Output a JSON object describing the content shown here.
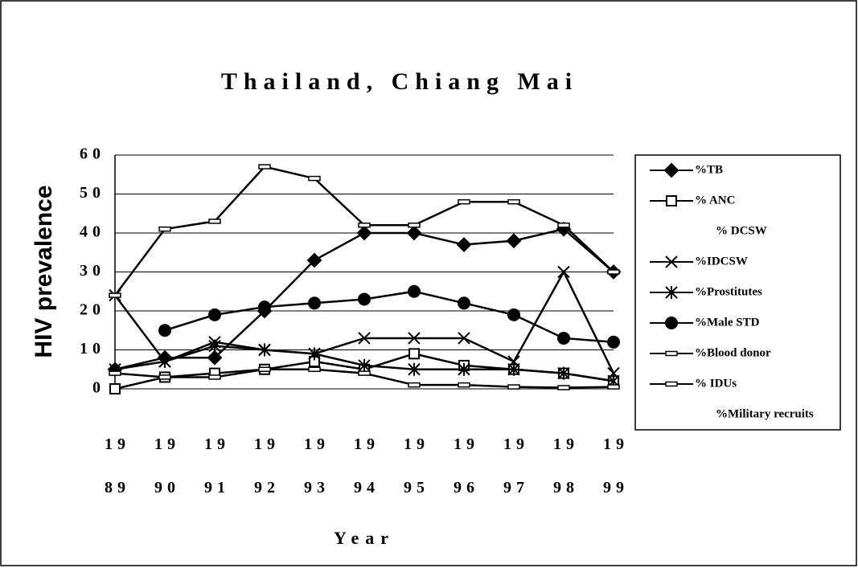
{
  "chart_data": {
    "type": "line",
    "title": "Thailand, Chiang Mai",
    "x_label": "Year",
    "y_label": "HIV prevalence",
    "categories": [
      "1989",
      "1990",
      "1991",
      "1992",
      "1993",
      "1994",
      "1995",
      "1996",
      "1997",
      "1998",
      "1999"
    ],
    "ylim": [
      0,
      60
    ],
    "yticks": [
      0,
      10,
      20,
      30,
      40,
      50,
      60
    ],
    "grid": true,
    "legend": "right",
    "series": [
      {
        "name": "%TB",
        "color": "#000000",
        "marker": "diamond",
        "values": [
          5,
          8,
          8,
          20,
          33,
          40,
          40,
          37,
          38,
          41,
          30
        ]
      },
      {
        "name": "% ANC",
        "color": "#000000",
        "marker": "square",
        "values": [
          0,
          3,
          4,
          5,
          7,
          5,
          9,
          6,
          5,
          4,
          2
        ]
      },
      {
        "name": "% DCSW",
        "color": "#000000",
        "marker": "none",
        "values": [
          null,
          null,
          null,
          null,
          null,
          null,
          null,
          null,
          null,
          null,
          null
        ]
      },
      {
        "name": "%IDCSW",
        "color": "#000000",
        "marker": "x",
        "values": [
          24,
          7,
          12,
          10,
          9,
          13,
          13,
          13,
          7,
          30,
          4
        ]
      },
      {
        "name": "%Prostitutes",
        "color": "#000000",
        "marker": "asterisk",
        "values": [
          5,
          7,
          11,
          10,
          9,
          6,
          5,
          5,
          5,
          4,
          2
        ]
      },
      {
        "name": "%Male STD",
        "color": "#000000",
        "marker": "circle",
        "values": [
          null,
          15,
          19,
          21,
          22,
          23,
          25,
          22,
          19,
          13,
          12
        ]
      },
      {
        "name": "%Blood donor",
        "color": "#000000",
        "marker": "dash",
        "values": [
          4,
          3,
          3,
          5,
          5,
          4,
          1,
          1,
          0.5,
          0.3,
          0.5
        ]
      },
      {
        "name": "% IDUs",
        "color": "#000000",
        "marker": "dash",
        "values": [
          24,
          41,
          43,
          57,
          54,
          42,
          42,
          48,
          48,
          42,
          30
        ]
      },
      {
        "name": "%Military recruits",
        "color": "#000000",
        "marker": "none",
        "values": [
          null,
          null,
          null,
          null,
          null,
          null,
          null,
          null,
          null,
          null,
          null
        ]
      }
    ]
  }
}
